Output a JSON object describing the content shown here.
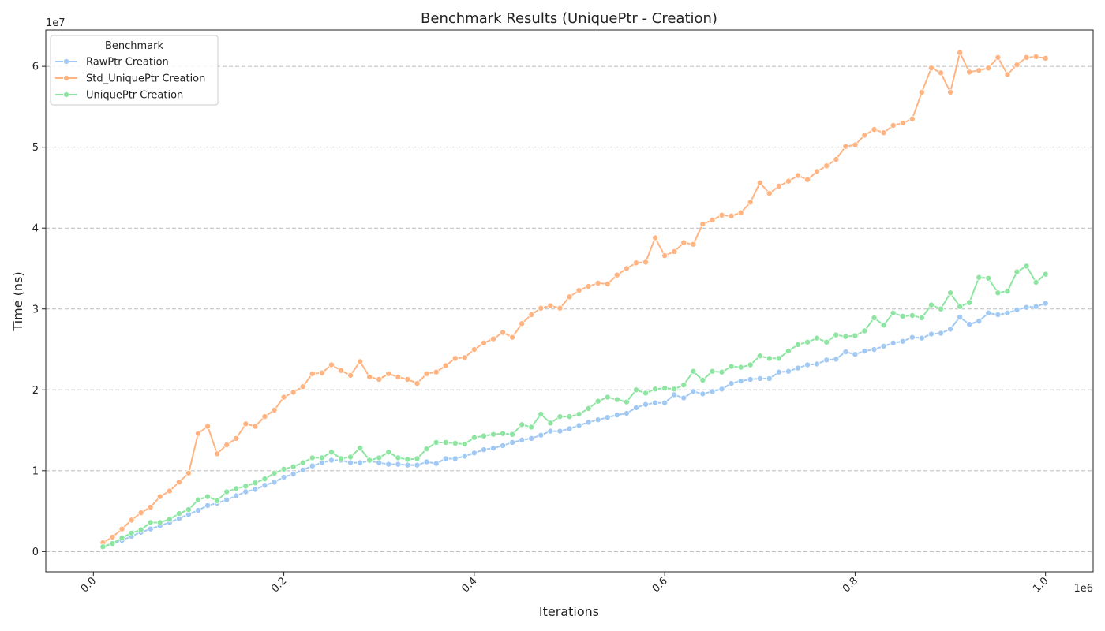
{
  "chart_data": {
    "type": "line",
    "title": "Benchmark Results (UniquePtr - Creation)",
    "xlabel": "Iterations",
    "ylabel": "Time (ns)",
    "x_multiplier": "1e6",
    "y_multiplier": "1e7",
    "xlim": [
      -50000,
      1050000
    ],
    "ylim": [
      -2500000,
      64500000
    ],
    "x_ticks": [
      0,
      200000,
      400000,
      600000,
      800000,
      1000000
    ],
    "x_tick_labels": [
      "0.0",
      "0.2",
      "0.4",
      "0.6",
      "0.8",
      "1.0"
    ],
    "y_ticks": [
      0,
      10000000,
      20000000,
      30000000,
      40000000,
      50000000,
      60000000
    ],
    "y_tick_labels": [
      "0",
      "1",
      "2",
      "3",
      "4",
      "5",
      "6"
    ],
    "grid": "y-dashed",
    "legend": {
      "title": "Benchmark",
      "placement": "top-left"
    },
    "x": [
      10000,
      20000,
      30000,
      40000,
      50000,
      60000,
      70000,
      80000,
      90000,
      100000,
      110000,
      120000,
      130000,
      140000,
      150000,
      160000,
      170000,
      180000,
      190000,
      200000,
      210000,
      220000,
      230000,
      240000,
      250000,
      260000,
      270000,
      280000,
      290000,
      300000,
      310000,
      320000,
      330000,
      340000,
      350000,
      360000,
      370000,
      380000,
      390000,
      400000,
      410000,
      420000,
      430000,
      440000,
      450000,
      460000,
      470000,
      480000,
      490000,
      500000,
      510000,
      520000,
      530000,
      540000,
      550000,
      560000,
      570000,
      580000,
      590000,
      600000,
      610000,
      620000,
      630000,
      640000,
      650000,
      660000,
      670000,
      680000,
      690000,
      700000,
      710000,
      720000,
      730000,
      740000,
      750000,
      760000,
      770000,
      780000,
      790000,
      800000,
      810000,
      820000,
      830000,
      840000,
      850000,
      860000,
      870000,
      880000,
      890000,
      900000,
      910000,
      920000,
      930000,
      940000,
      950000,
      960000,
      970000,
      980000,
      990000,
      1000000
    ],
    "series": [
      {
        "name": "RawPtr Creation",
        "color": "#a1c9f4",
        "values": [
          600000,
          1000000,
          1400000,
          1900000,
          2400000,
          2800000,
          3200000,
          3600000,
          4100000,
          4600000,
          5100000,
          5700000,
          6000000,
          6400000,
          6900000,
          7400000,
          7700000,
          8200000,
          8600000,
          9200000,
          9600000,
          10100000,
          10600000,
          11000000,
          11300000,
          11300000,
          11000000,
          11000000,
          11200000,
          11000000,
          10800000,
          10800000,
          10700000,
          10700000,
          11100000,
          10900000,
          11500000,
          11500000,
          11800000,
          12200000,
          12600000,
          12800000,
          13100000,
          13500000,
          13800000,
          14000000,
          14400000,
          14900000,
          14900000,
          15200000,
          15600000,
          16000000,
          16300000,
          16600000,
          16900000,
          17100000,
          17800000,
          18200000,
          18400000,
          18400000,
          19400000,
          19000000,
          19800000,
          19500000,
          19800000,
          20100000,
          20800000,
          21100000,
          21300000,
          21400000,
          21400000,
          22200000,
          22300000,
          22700000,
          23100000,
          23200000,
          23700000,
          23800000,
          24700000,
          24400000,
          24800000,
          25000000,
          25400000,
          25800000,
          26000000,
          26500000,
          26400000,
          26900000,
          27000000,
          27500000,
          29000000,
          28100000,
          28500000,
          29500000,
          29300000,
          29500000,
          29900000,
          30200000,
          30300000,
          30700000
        ]
      },
      {
        "name": "Std_UniquePtr Creation",
        "color": "#ffb482",
        "values": [
          1100000,
          1800000,
          2800000,
          3900000,
          4800000,
          5500000,
          6800000,
          7500000,
          8600000,
          9700000,
          14600000,
          15500000,
          12100000,
          13200000,
          14000000,
          15800000,
          15500000,
          16700000,
          17500000,
          19100000,
          19700000,
          20400000,
          22000000,
          22100000,
          23100000,
          22400000,
          21800000,
          23500000,
          21600000,
          21300000,
          22000000,
          21600000,
          21300000,
          20800000,
          22000000,
          22200000,
          23000000,
          23900000,
          24000000,
          25000000,
          25800000,
          26300000,
          27100000,
          26500000,
          28200000,
          29300000,
          30100000,
          30400000,
          30100000,
          31500000,
          32300000,
          32800000,
          33200000,
          33100000,
          34200000,
          35000000,
          35700000,
          35800000,
          38800000,
          36600000,
          37100000,
          38200000,
          38000000,
          40500000,
          41000000,
          41600000,
          41500000,
          41900000,
          43200000,
          45600000,
          44300000,
          45200000,
          45800000,
          46500000,
          46000000,
          47000000,
          47700000,
          48500000,
          50100000,
          50300000,
          51500000,
          52200000,
          51800000,
          52700000,
          53000000,
          53500000,
          56800000,
          59800000,
          59200000,
          56800000,
          61700000,
          59300000,
          59500000,
          59800000,
          61100000,
          59000000,
          60200000,
          61100000,
          61200000,
          61000000
        ]
      },
      {
        "name": "UniquePtr Creation",
        "color": "#8de5a1",
        "values": [
          600000,
          1000000,
          1700000,
          2300000,
          2700000,
          3600000,
          3600000,
          4000000,
          4700000,
          5200000,
          6400000,
          6800000,
          6300000,
          7400000,
          7800000,
          8100000,
          8500000,
          9000000,
          9700000,
          10200000,
          10500000,
          11000000,
          11600000,
          11600000,
          12300000,
          11500000,
          11700000,
          12800000,
          11300000,
          11600000,
          12300000,
          11600000,
          11400000,
          11500000,
          12700000,
          13500000,
          13500000,
          13400000,
          13300000,
          14100000,
          14300000,
          14500000,
          14600000,
          14500000,
          15700000,
          15400000,
          17000000,
          15900000,
          16700000,
          16700000,
          17000000,
          17700000,
          18600000,
          19100000,
          18800000,
          18500000,
          20000000,
          19600000,
          20100000,
          20200000,
          20100000,
          20600000,
          22300000,
          21200000,
          22300000,
          22200000,
          22900000,
          22800000,
          23100000,
          24200000,
          23900000,
          23900000,
          24800000,
          25600000,
          25900000,
          26400000,
          25900000,
          26800000,
          26600000,
          26700000,
          27300000,
          28900000,
          28000000,
          29500000,
          29100000,
          29200000,
          28900000,
          30500000,
          30000000,
          32000000,
          30300000,
          30800000,
          33900000,
          33800000,
          32000000,
          32200000,
          34600000,
          35300000,
          33300000,
          34300000
        ]
      }
    ]
  }
}
